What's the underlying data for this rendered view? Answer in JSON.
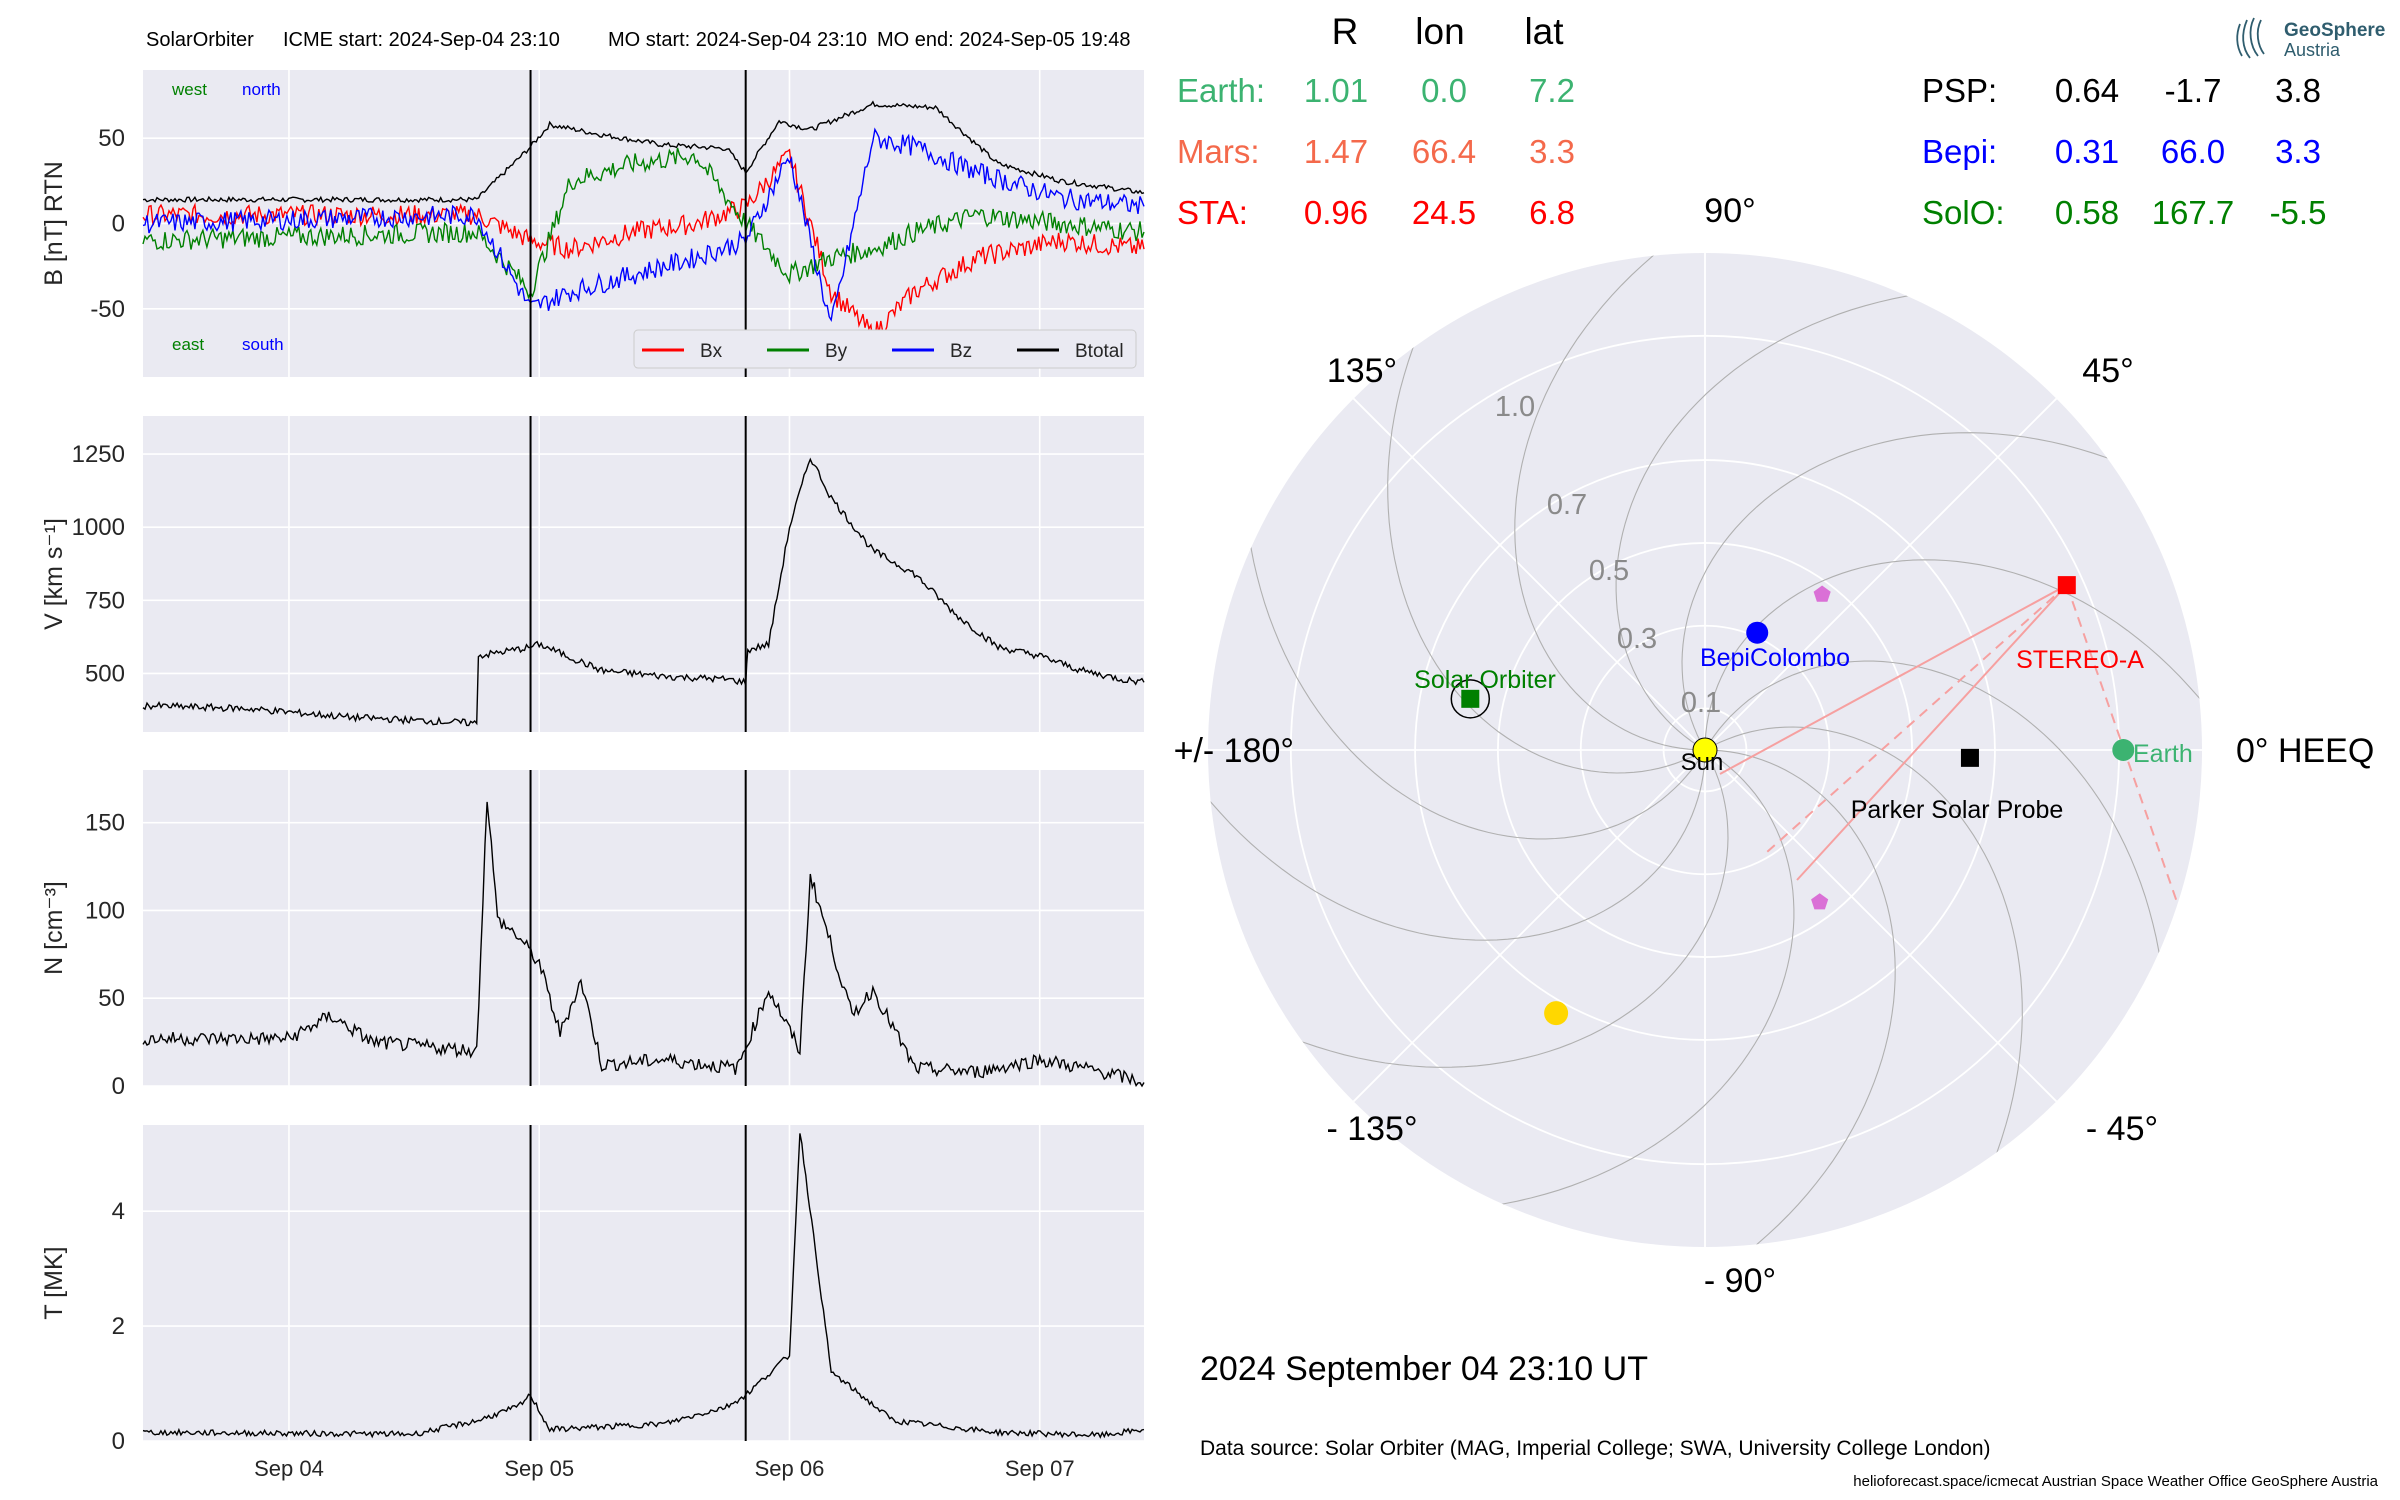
{
  "header": {
    "spacecraft": "SolarOrbiter",
    "icme_start": "ICME start: 2024-Sep-04 23:10",
    "mo_start": "MO start: 2024-Sep-04 23:10",
    "mo_end": "MO end: 2024-Sep-05 19:48"
  },
  "position_table": {
    "col_r": "R",
    "col_lon": "lon",
    "col_lat": "lat",
    "rows": [
      {
        "label": "Earth:",
        "r": "1.01",
        "lon": "0.0",
        "lat": "7.2",
        "color": "#3cb371"
      },
      {
        "label": "Mars:",
        "r": "1.47",
        "lon": "66.4",
        "lat": "3.3",
        "color": "#f4694b"
      },
      {
        "label": "STA:",
        "r": "0.96",
        "lon": "24.5",
        "lat": "6.8",
        "color": "#ff0000"
      },
      {
        "label": "PSP:",
        "r": "0.64",
        "lon": "-1.7",
        "lat": "3.8",
        "color": "#000000"
      },
      {
        "label": "Bepi:",
        "r": "0.31",
        "lon": "66.0",
        "lat": "3.3",
        "color": "#0000ff"
      },
      {
        "label": "SolO:",
        "r": "0.58",
        "lon": "167.7",
        "lat": "-5.5",
        "color": "#008000"
      }
    ]
  },
  "logo": {
    "line1": "GeoSphere",
    "line2": "Austria"
  },
  "polar": {
    "angle_labels": [
      "90°",
      "45°",
      "0° HEEQ",
      "- 45°",
      "- 90°",
      "- 135°",
      "+/- 180°",
      "135°"
    ],
    "radial_labels": [
      "0.1",
      "0.3",
      "0.5",
      "0.7",
      "1.0"
    ],
    "sun_label": "Sun",
    "bodies": [
      {
        "name": "Solar Orbiter",
        "r": 0.58,
        "lon": 167.7,
        "color": "#008000",
        "marker": "square-ring"
      },
      {
        "name": "BepiColombo",
        "r": 0.31,
        "lon": 66.0,
        "color": "#0000ff",
        "marker": "square-dot"
      },
      {
        "name": "STEREO-A",
        "r": 0.96,
        "lon": 24.5,
        "color": "#ff0000",
        "marker": "square"
      },
      {
        "name": "Parker Solar Probe",
        "r": 0.64,
        "lon": -1.7,
        "color": "#000000",
        "marker": "square"
      },
      {
        "name": "Earth",
        "r": 1.01,
        "lon": 0.0,
        "color": "#3cb371",
        "marker": "circle"
      }
    ],
    "extra_markers": [
      {
        "kind": "Mercury",
        "r": 0.47,
        "lon": 53,
        "color": "#da70d6",
        "marker": "pentagon"
      },
      {
        "kind": "Venus",
        "r": 0.73,
        "lon": -119.5,
        "color": "#ffd700",
        "marker": "circle"
      },
      {
        "kind": "Mercury2",
        "r": 0.46,
        "lon": -53,
        "color": "#da70d6",
        "marker": "pentagon"
      }
    ]
  },
  "date_text": "2024 September 04  23:10 UT",
  "source_text": "Data source: Solar Orbiter (MAG, Imperial College; SWA, University College London)",
  "footer_text": "helioforecast.space/icmecat   Austrian Space Weather Office   GeoSphere Austria",
  "chart_data": [
    {
      "type": "line",
      "panel": "magnetic field",
      "ylabel": "B [nT] RTN",
      "ylim": [
        -90,
        90
      ],
      "yticks": [
        -50,
        0,
        50
      ],
      "x_range": [
        "2024-09-03 10:00",
        "2024-09-07 10:00"
      ],
      "xticks": [
        "Sep 04",
        "Sep 05",
        "Sep 06",
        "Sep 07"
      ],
      "annotations": {
        "west": "west",
        "north": "north",
        "east": "east",
        "south": "south"
      },
      "legend": [
        "Bx",
        "By",
        "Bz",
        "Btotal"
      ],
      "event_lines": [
        "2024-09-04 23:10",
        "2024-09-05 19:48"
      ],
      "series": [
        {
          "name": "Btotal",
          "color": "#000000",
          "x": [
            "09-03 10:00",
            "09-04 18:00",
            "09-04 23:10",
            "09-05 01:00",
            "09-05 06:00",
            "09-05 12:00",
            "09-05 18:00",
            "09-05 19:48",
            "09-05 23:00",
            "09-06 02:00",
            "09-06 08:00",
            "09-06 14:00",
            "09-06 20:00",
            "09-07 02:00",
            "09-07 10:00"
          ],
          "y": [
            14,
            14,
            45,
            58,
            52,
            46,
            44,
            30,
            60,
            55,
            70,
            68,
            35,
            25,
            18
          ]
        },
        {
          "name": "Bx",
          "color": "#ff0000",
          "x": [
            "09-03 10:00",
            "09-04 18:00",
            "09-04 23:10",
            "09-05 03:00",
            "09-05 09:00",
            "09-05 15:00",
            "09-05 19:48",
            "09-06 00:00",
            "09-06 04:00",
            "09-06 08:00",
            "09-06 12:00",
            "09-06 18:00",
            "09-07 02:00",
            "09-07 10:00"
          ],
          "y": [
            5,
            5,
            -10,
            -15,
            -5,
            0,
            10,
            40,
            -40,
            -65,
            -40,
            -20,
            -10,
            -15
          ]
        },
        {
          "name": "By",
          "color": "#008000",
          "x": [
            "09-03 10:00",
            "09-04 18:00",
            "09-04 23:10",
            "09-05 03:00",
            "09-05 09:00",
            "09-05 15:00",
            "09-05 19:48",
            "09-06 00:00",
            "09-06 04:00",
            "09-06 08:00",
            "09-06 12:00",
            "09-06 18:00",
            "09-07 02:00",
            "09-07 10:00"
          ],
          "y": [
            -10,
            -5,
            -40,
            25,
            35,
            40,
            0,
            -30,
            -20,
            -15,
            -5,
            5,
            0,
            -5
          ]
        },
        {
          "name": "Bz",
          "color": "#0000ff",
          "x": [
            "09-03 10:00",
            "09-04 18:00",
            "09-04 23:10",
            "09-05 03:00",
            "09-05 09:00",
            "09-05 15:00",
            "09-05 19:48",
            "09-06 00:00",
            "09-06 04:00",
            "09-06 08:00",
            "09-06 12:00",
            "09-06 18:00",
            "09-07 02:00",
            "09-07 10:00"
          ],
          "y": [
            0,
            5,
            -50,
            -40,
            -30,
            -20,
            -10,
            40,
            -60,
            50,
            45,
            30,
            15,
            10
          ]
        }
      ]
    },
    {
      "type": "line",
      "panel": "speed",
      "ylabel": "V [km s⁻¹]",
      "ylim": [
        300,
        1380
      ],
      "yticks": [
        500,
        750,
        1000,
        1250
      ],
      "x_range": [
        "2024-09-03 10:00",
        "2024-09-07 10:00"
      ],
      "series": [
        {
          "name": "V",
          "color": "#000000",
          "x": [
            "09-03 10:00",
            "09-03 20:00",
            "09-04 06:00",
            "09-04 18:00",
            "09-04 18:10",
            "09-04 23:10",
            "09-05 00:00",
            "09-05 06:00",
            "09-05 12:00",
            "09-05 18:00",
            "09-05 19:48",
            "09-05 20:00",
            "09-05 22:00",
            "09-06 00:00",
            "09-06 02:00",
            "09-06 04:00",
            "09-06 08:00",
            "09-06 12:00",
            "09-06 16:00",
            "09-06 20:00",
            "09-07 00:00",
            "09-07 04:00",
            "09-07 08:00",
            "09-07 10:00"
          ],
          "y": [
            390,
            380,
            350,
            330,
            560,
            590,
            600,
            510,
            490,
            480,
            470,
            580,
            600,
            1000,
            1240,
            1100,
            920,
            840,
            700,
            590,
            560,
            510,
            480,
            470
          ]
        }
      ]
    },
    {
      "type": "line",
      "panel": "density",
      "ylabel": "N [cm⁻³]",
      "ylim": [
        0,
        180
      ],
      "yticks": [
        0,
        50,
        100,
        150
      ],
      "x_range": [
        "2024-09-03 10:00",
        "2024-09-07 10:00"
      ],
      "series": [
        {
          "name": "N",
          "color": "#000000",
          "x": [
            "09-03 10:00",
            "09-04 00:00",
            "09-04 04:00",
            "09-04 08:00",
            "09-04 14:00",
            "09-04 18:00",
            "09-04 19:00",
            "09-04 20:00",
            "09-04 22:00",
            "09-05 00:00",
            "09-05 02:00",
            "09-05 04:00",
            "09-05 06:00",
            "09-05 12:00",
            "09-05 19:00",
            "09-05 22:00",
            "09-06 01:00",
            "09-06 02:00",
            "09-06 06:00",
            "09-06 08:00",
            "09-06 12:00",
            "09-06 18:00",
            "09-07 00:00",
            "09-07 06:00",
            "09-07 10:00"
          ],
          "y": [
            27,
            27,
            40,
            25,
            22,
            20,
            165,
            95,
            85,
            70,
            30,
            60,
            12,
            15,
            10,
            55,
            20,
            120,
            40,
            55,
            10,
            8,
            15,
            8,
            2
          ]
        }
      ]
    },
    {
      "type": "line",
      "panel": "temperature",
      "ylabel": "T [MK]",
      "ylim": [
        0,
        5.5
      ],
      "yticks": [
        0,
        2,
        4
      ],
      "x_range": [
        "2024-09-03 10:00",
        "2024-09-07 10:00"
      ],
      "series": [
        {
          "name": "T",
          "color": "#000000",
          "x": [
            "09-03 10:00",
            "09-04 12:00",
            "09-04 18:00",
            "09-04 22:00",
            "09-04 23:10",
            "09-05 01:00",
            "09-05 12:00",
            "09-05 18:00",
            "09-05 19:48",
            "09-06 00:00",
            "09-06 01:00",
            "09-06 04:00",
            "09-06 10:00",
            "09-06 20:00",
            "09-07 06:00",
            "09-07 10:00"
          ],
          "y": [
            0.15,
            0.12,
            0.35,
            0.6,
            0.8,
            0.2,
            0.3,
            0.6,
            0.8,
            1.5,
            5.4,
            1.2,
            0.35,
            0.15,
            0.1,
            0.2
          ]
        }
      ]
    }
  ]
}
